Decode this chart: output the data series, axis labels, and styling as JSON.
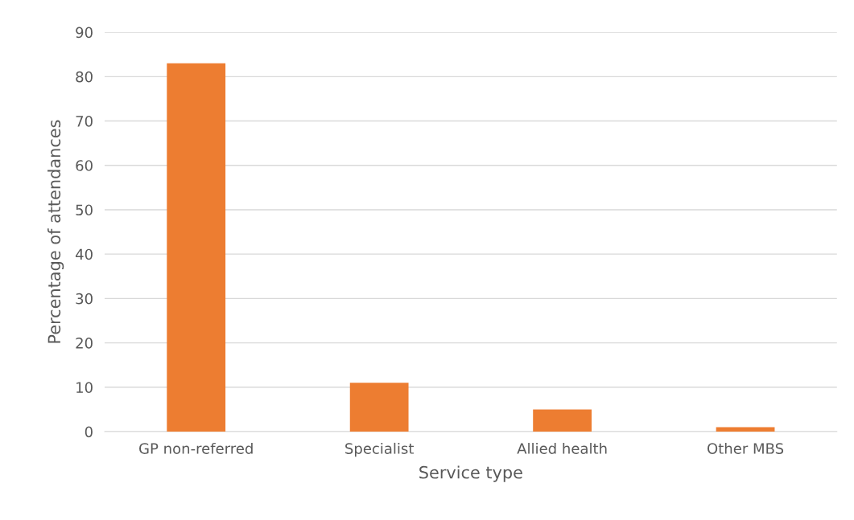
{
  "chart_data": {
    "type": "bar",
    "xlabel": "Service type",
    "ylabel": "Percentage of attendances",
    "categories": [
      "GP non-referred",
      "Specialist",
      "Allied health",
      "Other MBS"
    ],
    "values": [
      83,
      11,
      5,
      1
    ],
    "color": "#ed7d31",
    "ylim": [
      0,
      90
    ],
    "yticks": [
      0,
      10,
      20,
      30,
      40,
      50,
      60,
      70,
      80,
      90
    ],
    "grid": "y",
    "legend": false
  }
}
